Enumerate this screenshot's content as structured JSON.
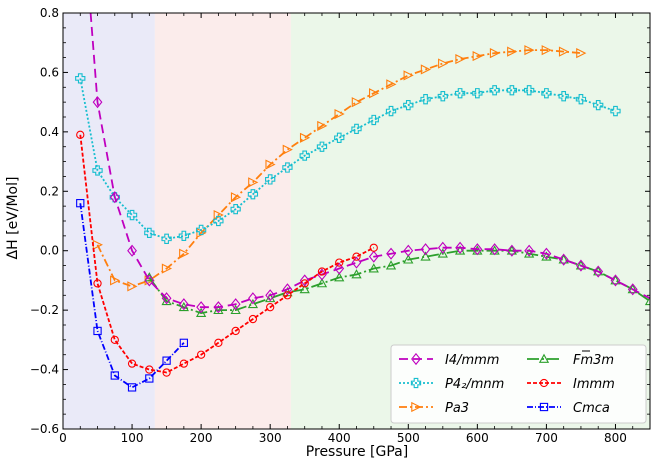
{
  "chart_data": {
    "type": "line",
    "xlabel": "Pressure [GPa]",
    "ylabel": "ΔH [eV/Mol]",
    "xlim": [
      0,
      850
    ],
    "ylim": [
      -0.6,
      0.8
    ],
    "xticks": [
      "0",
      "100",
      "200",
      "300",
      "400",
      "500",
      "600",
      "700",
      "800"
    ],
    "yticks": [
      "−0.6",
      "−0.4",
      "−0.2",
      "0.0",
      "0.2",
      "0.4",
      "0.6",
      "0.8"
    ],
    "xtick_values": [
      0,
      100,
      200,
      300,
      400,
      500,
      600,
      700,
      800
    ],
    "ytick_values": [
      -0.6,
      -0.4,
      -0.2,
      0.0,
      0.2,
      0.4,
      0.6,
      0.8
    ],
    "grid": false,
    "legend_position": "lower-right",
    "background_regions": [
      {
        "x": [
          0,
          133
        ],
        "color": "#eaeaf8"
      },
      {
        "x": [
          133,
          330
        ],
        "color": "#fbeceb"
      },
      {
        "x": [
          330,
          850
        ],
        "color": "#ebf7e9"
      }
    ],
    "series": [
      {
        "name": "I4/mmm",
        "color": "#bf00bf",
        "marker": "diamond",
        "dash": "9,5",
        "x": [
          40,
          50,
          75,
          100,
          125,
          150,
          175,
          200,
          225,
          250,
          275,
          300,
          325,
          350,
          375,
          400,
          425,
          450,
          475,
          500,
          525,
          550,
          575,
          600,
          625,
          650,
          675,
          700,
          725,
          750,
          775,
          800,
          825,
          850
        ],
        "y": [
          0.8,
          0.5,
          0.18,
          0.0,
          -0.1,
          -0.16,
          -0.18,
          -0.19,
          -0.19,
          -0.18,
          -0.16,
          -0.15,
          -0.13,
          -0.1,
          -0.08,
          -0.06,
          -0.04,
          -0.02,
          -0.01,
          0.0,
          0.005,
          0.01,
          0.01,
          0.005,
          0.005,
          0.0,
          0.0,
          -0.01,
          -0.03,
          -0.05,
          -0.07,
          -0.1,
          -0.13,
          -0.16
        ],
        "markers_x": [
          50,
          75,
          100,
          125,
          150,
          175,
          200,
          225,
          250,
          275,
          300,
          325,
          350,
          375,
          400,
          425,
          450,
          475,
          500,
          525,
          550,
          575,
          600,
          625,
          650,
          675,
          700,
          725,
          750,
          775,
          800,
          825
        ]
      },
      {
        "name": "P4₂/mnm",
        "color": "#17becf",
        "marker": "plus",
        "dash": "2,2",
        "x": [
          25,
          50,
          75,
          100,
          125,
          150,
          175,
          200,
          225,
          250,
          275,
          300,
          325,
          350,
          375,
          400,
          425,
          450,
          475,
          500,
          525,
          550,
          575,
          600,
          625,
          650,
          675,
          700,
          725,
          750,
          775,
          800
        ],
        "y": [
          0.58,
          0.27,
          0.18,
          0.12,
          0.06,
          0.04,
          0.05,
          0.07,
          0.1,
          0.14,
          0.19,
          0.24,
          0.28,
          0.32,
          0.35,
          0.38,
          0.41,
          0.44,
          0.47,
          0.49,
          0.51,
          0.52,
          0.53,
          0.53,
          0.54,
          0.54,
          0.54,
          0.53,
          0.52,
          0.51,
          0.49,
          0.47
        ]
      },
      {
        "name": "Pa3",
        "color": "#ff7f0e",
        "marker": "triangle-right",
        "dash": "8,3,2,3",
        "x": [
          50,
          75,
          100,
          125,
          150,
          175,
          200,
          225,
          250,
          275,
          300,
          325,
          350,
          375,
          400,
          425,
          450,
          475,
          500,
          525,
          550,
          575,
          600,
          625,
          650,
          675,
          700,
          725,
          750
        ],
        "y": [
          0.02,
          -0.1,
          -0.12,
          -0.1,
          -0.06,
          -0.01,
          0.06,
          0.12,
          0.18,
          0.23,
          0.29,
          0.34,
          0.38,
          0.42,
          0.46,
          0.5,
          0.53,
          0.56,
          0.59,
          0.61,
          0.63,
          0.645,
          0.655,
          0.665,
          0.67,
          0.675,
          0.675,
          0.67,
          0.665
        ]
      },
      {
        "name": "Fm3m",
        "color": "#2ca02c",
        "marker": "triangle-up",
        "dash": "12,3,2,3",
        "x": [
          125,
          150,
          175,
          200,
          225,
          250,
          275,
          300,
          325,
          350,
          375,
          400,
          425,
          450,
          475,
          500,
          525,
          550,
          575,
          600,
          625,
          650,
          675,
          700,
          725,
          750,
          775,
          800,
          825,
          850
        ],
        "y": [
          -0.09,
          -0.17,
          -0.19,
          -0.21,
          -0.2,
          -0.2,
          -0.18,
          -0.16,
          -0.14,
          -0.13,
          -0.11,
          -0.09,
          -0.08,
          -0.06,
          -0.05,
          -0.03,
          -0.02,
          -0.01,
          0.0,
          0.0,
          0.0,
          0.0,
          -0.01,
          -0.02,
          -0.03,
          -0.05,
          -0.07,
          -0.1,
          -0.13,
          -0.17
        ]
      },
      {
        "name": "Immm",
        "color": "#ff0000",
        "marker": "circle",
        "dash": "4,2",
        "x": [
          25,
          50,
          75,
          100,
          125,
          150,
          175,
          200,
          225,
          250,
          275,
          300,
          325,
          350,
          375,
          400,
          425,
          450
        ],
        "y": [
          0.39,
          -0.11,
          -0.3,
          -0.38,
          -0.4,
          -0.41,
          -0.38,
          -0.35,
          -0.31,
          -0.27,
          -0.23,
          -0.19,
          -0.15,
          -0.11,
          -0.07,
          -0.04,
          -0.02,
          0.01
        ]
      },
      {
        "name": "Cmca",
        "color": "#0000ff",
        "marker": "square",
        "dash": "6,2,1,2",
        "x": [
          25,
          50,
          75,
          100,
          125,
          150,
          175
        ],
        "y": [
          0.16,
          -0.27,
          -0.42,
          -0.46,
          -0.43,
          -0.37,
          -0.31
        ]
      }
    ]
  },
  "legend": {
    "entries": [
      {
        "label": "I4/mmm",
        "series": 0
      },
      {
        "label": "Fm3m",
        "series": 3
      },
      {
        "label": "P4₂/mnm",
        "series": 1
      },
      {
        "label": "Immm",
        "series": 4
      },
      {
        "label": "Pa3",
        "series": 2
      },
      {
        "label": "Cmca",
        "series": 5
      }
    ]
  }
}
